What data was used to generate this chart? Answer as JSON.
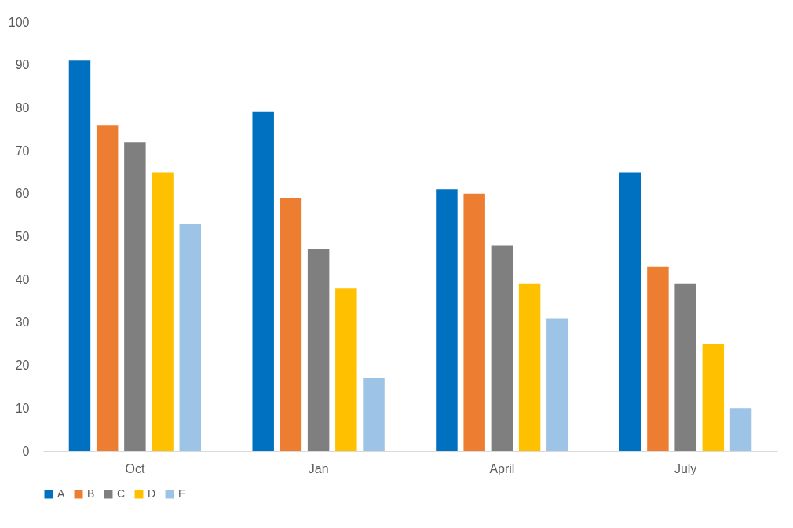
{
  "chart_data": {
    "type": "bar",
    "categories": [
      "Oct",
      "Jan",
      "April",
      "July"
    ],
    "series": [
      {
        "name": "A",
        "color": "#0070c0",
        "values": [
          91,
          79,
          61,
          65
        ]
      },
      {
        "name": "B",
        "color": "#ed7d31",
        "values": [
          76,
          59,
          60,
          43
        ]
      },
      {
        "name": "C",
        "color": "#7f7f7f",
        "values": [
          72,
          47,
          48,
          39
        ]
      },
      {
        "name": "D",
        "color": "#ffc000",
        "values": [
          65,
          38,
          39,
          25
        ]
      },
      {
        "name": "E",
        "color": "#9dc3e6",
        "values": [
          53,
          17,
          31,
          10
        ]
      }
    ],
    "ylim": [
      0,
      100
    ],
    "yticks": [
      0,
      10,
      20,
      30,
      40,
      50,
      60,
      70,
      80,
      90,
      100
    ],
    "grid": false,
    "legend": "bottom"
  }
}
